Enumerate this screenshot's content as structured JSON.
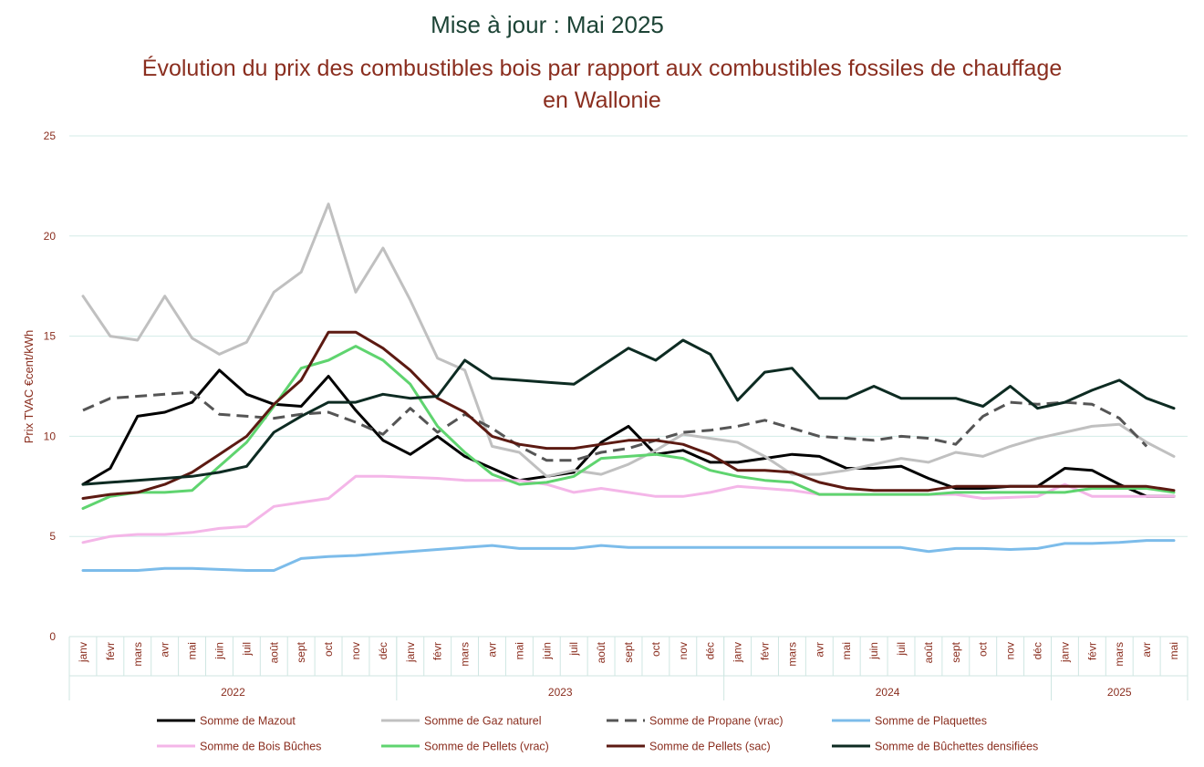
{
  "header": {
    "update": "Mise à jour : Mai 2025",
    "title": "Évolution du prix des combustibles bois par rapport aux combustibles fossiles de chauffage en Wallonie"
  },
  "chart_data": {
    "type": "line",
    "title": "Évolution du prix des combustibles bois par rapport aux combustibles fossiles de chauffage en Wallonie",
    "ylabel": "Prix  TVAC €cent/kWh",
    "xlabel": "",
    "ylim": [
      0,
      25
    ],
    "yticks": [
      0,
      5,
      10,
      15,
      20,
      25
    ],
    "grid": true,
    "legend_position": "bottom",
    "years": [
      {
        "label": "2022",
        "count": 12
      },
      {
        "label": "2023",
        "count": 12
      },
      {
        "label": "2024",
        "count": 12
      },
      {
        "label": "2025",
        "count": 5
      }
    ],
    "categories": [
      "janv",
      "févr",
      "mars",
      "avr",
      "mai",
      "juin",
      "juil",
      "août",
      "sept",
      "oct",
      "nov",
      "déc",
      "janv",
      "févr",
      "mars",
      "avr",
      "mai",
      "juin",
      "juil",
      "août",
      "sept",
      "oct",
      "nov",
      "déc",
      "janv",
      "févr",
      "mars",
      "avr",
      "mai",
      "juin",
      "juil",
      "août",
      "sept",
      "oct",
      "nov",
      "déc",
      "janv",
      "févr",
      "mars",
      "avr",
      "mai"
    ],
    "series": [
      {
        "name": "Somme de Mazout",
        "color": "#000000",
        "dash": false,
        "values": [
          7.6,
          8.4,
          11.0,
          11.2,
          11.7,
          13.3,
          12.1,
          11.6,
          11.5,
          13.0,
          11.3,
          9.8,
          9.1,
          10.0,
          9.0,
          8.4,
          7.8,
          8.0,
          8.2,
          9.7,
          10.5,
          9.1,
          9.3,
          8.7,
          8.7,
          8.9,
          9.1,
          9.0,
          8.4,
          8.4,
          8.5,
          7.9,
          7.4,
          7.4,
          7.5,
          7.5,
          8.4,
          8.3,
          7.6,
          7.0,
          7.0
        ]
      },
      {
        "name": "Somme de Gaz naturel",
        "color": "#c0c0c0",
        "dash": false,
        "values": [
          17.0,
          15.0,
          14.8,
          17.0,
          14.9,
          14.1,
          14.7,
          17.2,
          18.2,
          21.6,
          17.2,
          19.4,
          16.8,
          13.9,
          13.3,
          9.5,
          9.2,
          8.0,
          8.3,
          8.1,
          8.6,
          9.3,
          10.1,
          9.9,
          9.7,
          9.0,
          8.1,
          8.1,
          8.3,
          8.6,
          8.9,
          8.7,
          9.2,
          9.0,
          9.5,
          9.9,
          10.2,
          10.5,
          10.6,
          9.7,
          9.0
        ]
      },
      {
        "name": "Somme de Propane (vrac)",
        "color": "#555555",
        "dash": true,
        "values": [
          11.3,
          11.9,
          12.0,
          12.1,
          12.2,
          11.1,
          11.0,
          10.9,
          11.1,
          11.2,
          10.7,
          10.1,
          11.4,
          10.2,
          11.1,
          10.4,
          9.5,
          8.8,
          8.8,
          9.2,
          9.4,
          9.8,
          10.2,
          10.3,
          10.5,
          10.8,
          10.4,
          10.0,
          9.9,
          9.8,
          10.0,
          9.9,
          9.6,
          11.0,
          11.7,
          11.6,
          11.7,
          11.6,
          10.9,
          9.5,
          null
        ]
      },
      {
        "name": "Somme de Plaquettes",
        "color": "#7cbcea",
        "dash": false,
        "values": [
          3.3,
          3.3,
          3.3,
          3.4,
          3.4,
          3.35,
          3.3,
          3.3,
          3.9,
          4.0,
          4.05,
          4.15,
          4.25,
          4.35,
          4.45,
          4.55,
          4.4,
          4.4,
          4.4,
          4.55,
          4.45,
          4.45,
          4.45,
          4.45,
          4.45,
          4.45,
          4.45,
          4.45,
          4.45,
          4.45,
          4.45,
          4.25,
          4.4,
          4.4,
          4.35,
          4.4,
          4.65,
          4.65,
          4.7,
          4.8,
          4.8
        ]
      },
      {
        "name": "Somme de Bois Bûches",
        "color": "#f4b6e8",
        "dash": false,
        "values": [
          4.7,
          5.0,
          5.1,
          5.1,
          5.2,
          5.4,
          5.5,
          6.5,
          6.7,
          6.9,
          8.0,
          8.0,
          7.95,
          7.9,
          7.8,
          7.8,
          7.8,
          7.6,
          7.2,
          7.4,
          7.2,
          7.0,
          7.0,
          7.2,
          7.5,
          7.4,
          7.3,
          7.1,
          7.1,
          7.1,
          7.1,
          7.1,
          7.1,
          6.9,
          6.95,
          7.0,
          7.6,
          7.0,
          7.0,
          7.0,
          7.0
        ]
      },
      {
        "name": "Somme de Pellets (vrac)",
        "color": "#5fd46f",
        "dash": false,
        "values": [
          6.4,
          7.0,
          7.2,
          7.2,
          7.3,
          8.5,
          9.7,
          11.5,
          13.4,
          13.8,
          14.5,
          13.8,
          12.6,
          10.5,
          9.2,
          8.1,
          7.6,
          7.7,
          8.0,
          8.9,
          9.0,
          9.1,
          8.9,
          8.3,
          8.0,
          7.8,
          7.7,
          7.1,
          7.1,
          7.1,
          7.1,
          7.1,
          7.2,
          7.2,
          7.2,
          7.2,
          7.2,
          7.4,
          7.4,
          7.4,
          7.2
        ]
      },
      {
        "name": "Somme de Pellets (sac)",
        "color": "#5c1a12",
        "dash": false,
        "values": [
          6.9,
          7.1,
          7.2,
          7.6,
          8.2,
          9.1,
          10.0,
          11.6,
          12.8,
          15.2,
          15.2,
          14.4,
          13.3,
          11.9,
          11.2,
          10.0,
          9.6,
          9.4,
          9.4,
          9.6,
          9.8,
          9.8,
          9.6,
          9.1,
          8.3,
          8.3,
          8.2,
          7.7,
          7.4,
          7.3,
          7.3,
          7.3,
          7.5,
          7.5,
          7.5,
          7.5,
          7.5,
          7.5,
          7.5,
          7.5,
          7.3
        ]
      },
      {
        "name": "Somme de Bûchettes densifiées",
        "color": "#0d2b22",
        "dash": false,
        "values": [
          7.6,
          7.7,
          7.8,
          7.9,
          8.0,
          8.2,
          8.5,
          10.2,
          11.0,
          11.7,
          11.7,
          12.1,
          11.9,
          12.0,
          13.8,
          12.9,
          12.8,
          12.7,
          12.6,
          13.5,
          14.4,
          13.8,
          14.8,
          14.1,
          11.8,
          13.2,
          13.4,
          11.9,
          11.9,
          12.5,
          11.9,
          11.9,
          11.9,
          11.5,
          12.5,
          11.4,
          11.7,
          12.3,
          12.8,
          11.9,
          11.4
        ]
      }
    ]
  }
}
